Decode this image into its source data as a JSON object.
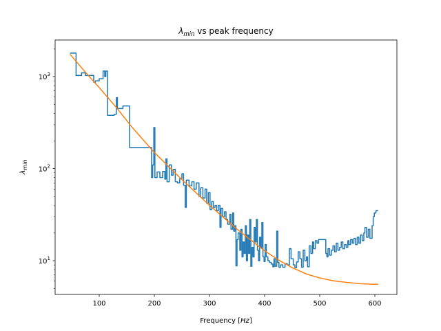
{
  "chart_data": {
    "type": "line",
    "title_main": "λ",
    "title_sub": "min",
    "title_rest": " vs peak frequency",
    "xlabel_main": "Frequency [",
    "xlabel_unit": "Hz",
    "xlabel_close": "]",
    "ylabel_main": "λ",
    "ylabel_sub": "min",
    "xlim": [
      20,
      640
    ],
    "ylim": [
      4.3,
      2500
    ],
    "yscale": "log",
    "grid": false,
    "x_ticks": [
      100,
      200,
      300,
      400,
      500,
      600
    ],
    "y_ticks": [
      {
        "value": 10,
        "base": "10",
        "exp": "1"
      },
      {
        "value": 100,
        "base": "10",
        "exp": "2"
      },
      {
        "value": 1000,
        "base": "10",
        "exp": "3"
      }
    ],
    "series": [
      {
        "color": "#1f77b4",
        "points": [
          [
            47,
            1800
          ],
          [
            58,
            1800
          ],
          [
            58,
            1030
          ],
          [
            68,
            1030
          ],
          [
            68,
            1100
          ],
          [
            75,
            1100
          ],
          [
            75,
            1030
          ],
          [
            90,
            1030
          ],
          [
            90,
            870
          ],
          [
            93,
            870
          ],
          [
            93,
            900
          ],
          [
            100,
            900
          ],
          [
            100,
            950
          ],
          [
            107,
            950
          ],
          [
            107,
            1150
          ],
          [
            110,
            1150
          ],
          [
            110,
            1000
          ],
          [
            112,
            1000
          ],
          [
            112,
            1150
          ],
          [
            115,
            1150
          ],
          [
            115,
            380
          ],
          [
            127,
            380
          ],
          [
            127,
            390
          ],
          [
            131,
            390
          ],
          [
            131,
            590
          ],
          [
            133,
            590
          ],
          [
            133,
            450
          ],
          [
            143,
            450
          ],
          [
            143,
            480
          ],
          [
            155,
            480
          ],
          [
            155,
            170
          ],
          [
            195,
            170
          ],
          [
            195,
            80
          ],
          [
            197,
            80
          ],
          [
            197,
            110
          ],
          [
            199,
            110
          ],
          [
            199,
            280
          ],
          [
            201,
            280
          ],
          [
            201,
            80
          ],
          [
            205,
            80
          ],
          [
            205,
            92
          ],
          [
            210,
            92
          ],
          [
            210,
            80
          ],
          [
            215,
            80
          ],
          [
            215,
            93
          ],
          [
            219,
            93
          ],
          [
            219,
            77
          ],
          [
            221,
            77
          ],
          [
            221,
            128
          ],
          [
            223,
            128
          ],
          [
            223,
            72
          ],
          [
            227,
            72
          ],
          [
            227,
            110
          ],
          [
            231,
            110
          ],
          [
            231,
            85
          ],
          [
            234,
            85
          ],
          [
            234,
            98
          ],
          [
            238,
            98
          ],
          [
            238,
            72
          ],
          [
            242,
            72
          ],
          [
            242,
            70
          ],
          [
            246,
            70
          ],
          [
            246,
            78
          ],
          [
            250,
            78
          ],
          [
            250,
            88
          ],
          [
            253,
            88
          ],
          [
            253,
            66
          ],
          [
            256,
            66
          ],
          [
            256,
            38
          ],
          [
            258,
            38
          ],
          [
            258,
            75
          ],
          [
            263,
            75
          ],
          [
            263,
            65
          ],
          [
            268,
            65
          ],
          [
            268,
            72
          ],
          [
            272,
            72
          ],
          [
            272,
            60
          ],
          [
            276,
            60
          ],
          [
            276,
            70
          ],
          [
            281,
            70
          ],
          [
            281,
            50
          ],
          [
            284,
            50
          ],
          [
            284,
            62
          ],
          [
            288,
            62
          ],
          [
            288,
            48
          ],
          [
            292,
            48
          ],
          [
            292,
            60
          ],
          [
            295,
            60
          ],
          [
            295,
            42
          ],
          [
            298,
            42
          ],
          [
            298,
            55
          ],
          [
            301,
            55
          ],
          [
            301,
            36
          ],
          [
            304,
            36
          ],
          [
            304,
            44
          ],
          [
            307,
            44
          ],
          [
            307,
            38
          ],
          [
            310,
            38
          ],
          [
            310,
            40
          ],
          [
            313,
            40
          ],
          [
            313,
            35
          ],
          [
            316,
            35
          ],
          [
            316,
            40
          ],
          [
            319,
            40
          ],
          [
            319,
            23
          ],
          [
            321,
            23
          ],
          [
            321,
            37
          ],
          [
            324,
            37
          ],
          [
            324,
            30
          ],
          [
            327,
            30
          ],
          [
            327,
            34
          ],
          [
            330,
            34
          ],
          [
            330,
            28
          ],
          [
            333,
            28
          ],
          [
            333,
            25
          ],
          [
            337,
            25
          ],
          [
            337,
            32
          ],
          [
            339,
            32
          ],
          [
            339,
            22
          ],
          [
            342,
            22
          ],
          [
            342,
            33
          ],
          [
            344,
            33
          ],
          [
            344,
            21
          ],
          [
            346,
            21
          ],
          [
            346,
            24
          ],
          [
            348,
            24
          ],
          [
            348,
            8.8
          ],
          [
            350,
            8.8
          ],
          [
            350,
            17
          ],
          [
            352,
            17
          ],
          [
            352,
            20
          ],
          [
            355,
            20
          ],
          [
            355,
            13
          ],
          [
            357,
            13
          ],
          [
            357,
            22
          ],
          [
            359,
            22
          ],
          [
            359,
            11
          ],
          [
            361,
            11
          ],
          [
            361,
            16
          ],
          [
            363,
            16
          ],
          [
            363,
            12
          ],
          [
            365,
            12
          ],
          [
            365,
            24
          ],
          [
            367,
            24
          ],
          [
            367,
            10
          ],
          [
            369,
            10
          ],
          [
            369,
            19
          ],
          [
            371,
            19
          ],
          [
            371,
            12
          ],
          [
            373,
            12
          ],
          [
            373,
            28
          ],
          [
            375,
            28
          ],
          [
            375,
            8.7
          ],
          [
            377,
            8.7
          ],
          [
            377,
            14
          ],
          [
            379,
            14
          ],
          [
            379,
            11
          ],
          [
            381,
            11
          ],
          [
            381,
            23
          ],
          [
            383,
            23
          ],
          [
            383,
            16
          ],
          [
            385,
            16
          ],
          [
            385,
            28
          ],
          [
            387,
            28
          ],
          [
            387,
            13
          ],
          [
            389,
            13
          ],
          [
            389,
            10
          ],
          [
            391,
            10
          ],
          [
            391,
            18
          ],
          [
            393,
            18
          ],
          [
            393,
            14
          ],
          [
            395,
            14
          ],
          [
            395,
            26
          ],
          [
            397,
            26
          ],
          [
            397,
            11
          ],
          [
            399,
            11
          ],
          [
            399,
            9.8
          ],
          [
            401,
            9.8
          ],
          [
            401,
            15
          ],
          [
            403,
            15
          ],
          [
            403,
            11
          ],
          [
            406,
            11
          ],
          [
            406,
            10
          ],
          [
            409,
            10
          ],
          [
            409,
            9.6
          ],
          [
            412,
            9.6
          ],
          [
            412,
            9.2
          ],
          [
            415,
            9.2
          ],
          [
            415,
            8.6
          ],
          [
            417,
            8.6
          ],
          [
            417,
            10.5
          ],
          [
            419,
            10.5
          ],
          [
            419,
            8.7
          ],
          [
            422,
            8.7
          ],
          [
            422,
            21
          ],
          [
            424,
            21
          ],
          [
            424,
            9.6
          ],
          [
            426,
            9.6
          ],
          [
            426,
            8.5
          ],
          [
            429,
            8.5
          ],
          [
            429,
            9
          ],
          [
            433,
            9
          ],
          [
            433,
            8.5
          ],
          [
            437,
            8.5
          ],
          [
            437,
            9.3
          ],
          [
            441,
            9.3
          ],
          [
            441,
            9
          ],
          [
            445,
            9
          ],
          [
            445,
            13.5
          ],
          [
            448,
            13.5
          ],
          [
            448,
            10.5
          ],
          [
            452,
            10.5
          ],
          [
            452,
            9
          ],
          [
            455,
            9
          ],
          [
            455,
            8.4
          ],
          [
            458,
            8.4
          ],
          [
            458,
            9.7
          ],
          [
            461,
            9.7
          ],
          [
            461,
            12.5
          ],
          [
            464,
            12.5
          ],
          [
            464,
            10.5
          ],
          [
            467,
            10.5
          ],
          [
            467,
            8.5
          ],
          [
            470,
            8.5
          ],
          [
            470,
            13
          ],
          [
            473,
            13
          ],
          [
            473,
            10
          ],
          [
            476,
            10
          ],
          [
            476,
            11
          ],
          [
            478,
            11
          ],
          [
            478,
            8.6
          ],
          [
            481,
            8.6
          ],
          [
            481,
            14.5
          ],
          [
            484,
            14.5
          ],
          [
            484,
            12
          ],
          [
            487,
            12
          ],
          [
            487,
            16
          ],
          [
            489,
            16
          ],
          [
            489,
            13.5
          ],
          [
            492,
            13.5
          ],
          [
            492,
            16.5
          ],
          [
            495,
            16.5
          ],
          [
            495,
            15.5
          ],
          [
            498,
            15.5
          ],
          [
            498,
            17
          ],
          [
            511,
            17
          ],
          [
            511,
            12
          ],
          [
            513,
            12
          ],
          [
            513,
            11
          ],
          [
            515,
            11
          ],
          [
            515,
            13.5
          ],
          [
            518,
            13.5
          ],
          [
            518,
            11.5
          ],
          [
            521,
            11.5
          ],
          [
            521,
            13
          ],
          [
            524,
            13
          ],
          [
            524,
            14.5
          ],
          [
            527,
            14.5
          ],
          [
            527,
            12.5
          ],
          [
            530,
            12.5
          ],
          [
            530,
            15.5
          ],
          [
            533,
            15.5
          ],
          [
            533,
            13
          ],
          [
            536,
            13
          ],
          [
            536,
            14
          ],
          [
            539,
            14
          ],
          [
            539,
            16
          ],
          [
            542,
            16
          ],
          [
            542,
            13.5
          ],
          [
            545,
            13.5
          ],
          [
            545,
            15
          ],
          [
            548,
            15
          ],
          [
            548,
            14
          ],
          [
            551,
            14
          ],
          [
            551,
            16.5
          ],
          [
            553,
            16.5
          ],
          [
            553,
            15
          ],
          [
            556,
            15
          ],
          [
            556,
            17
          ],
          [
            559,
            17
          ],
          [
            559,
            15.5
          ],
          [
            562,
            15.5
          ],
          [
            562,
            17.5
          ],
          [
            565,
            17.5
          ],
          [
            565,
            15
          ],
          [
            568,
            15
          ],
          [
            568,
            18
          ],
          [
            571,
            18
          ],
          [
            571,
            15.5
          ],
          [
            574,
            15.5
          ],
          [
            574,
            19
          ],
          [
            577,
            19
          ],
          [
            577,
            16.5
          ],
          [
            580,
            16.5
          ],
          [
            580,
            20
          ],
          [
            582,
            20
          ],
          [
            582,
            23
          ],
          [
            585,
            23
          ],
          [
            585,
            18
          ],
          [
            588,
            18
          ],
          [
            588,
            22
          ],
          [
            591,
            22
          ],
          [
            591,
            17.5
          ],
          [
            595,
            17.5
          ],
          [
            595,
            24
          ],
          [
            597,
            24
          ],
          [
            597,
            30
          ],
          [
            599,
            30
          ],
          [
            599,
            33
          ],
          [
            602,
            33
          ],
          [
            602,
            35
          ],
          [
            606,
            35
          ]
        ]
      },
      {
        "color": "#ff7f0e",
        "points": [
          [
            47,
            1750
          ],
          [
            80,
            1030
          ],
          [
            100,
            760
          ],
          [
            130,
            470
          ],
          [
            160,
            280
          ],
          [
            200,
            150
          ],
          [
            250,
            76
          ],
          [
            300,
            40
          ],
          [
            350,
            22
          ],
          [
            400,
            12.8
          ],
          [
            425,
            10.2
          ],
          [
            450,
            8.4
          ],
          [
            475,
            7.2
          ],
          [
            500,
            6.5
          ],
          [
            525,
            6.05
          ],
          [
            550,
            5.8
          ],
          [
            575,
            5.62
          ],
          [
            600,
            5.55
          ],
          [
            606,
            5.55
          ]
        ]
      }
    ]
  }
}
